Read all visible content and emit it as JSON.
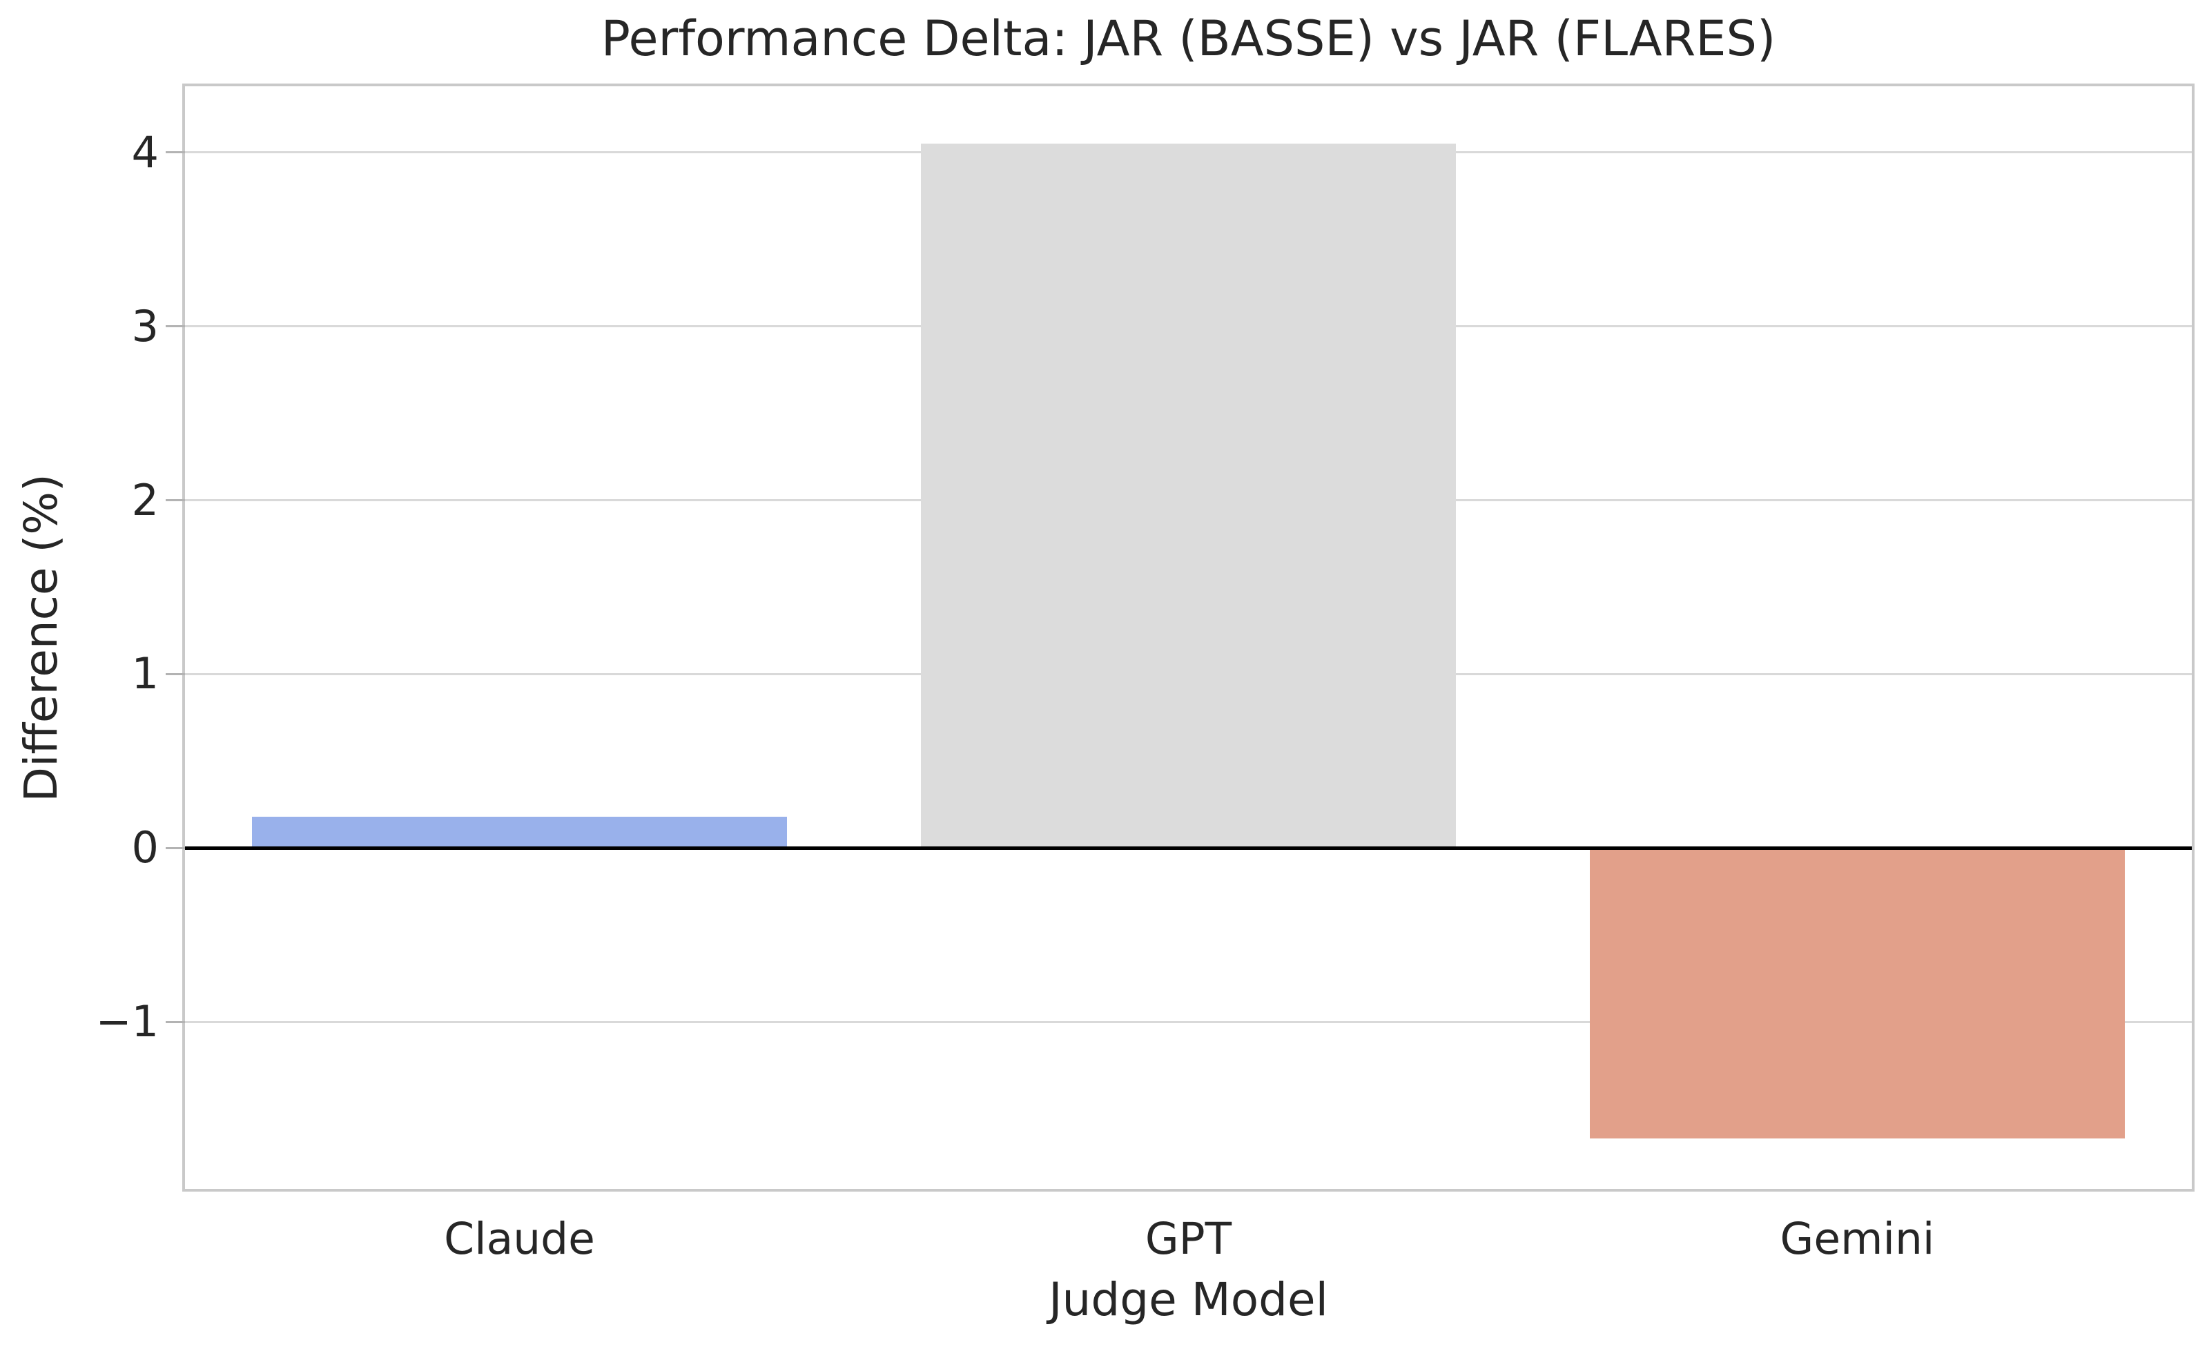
{
  "chart_data": {
    "type": "bar",
    "title": "Performance Delta: JAR (BASSE) vs JAR (FLARES)",
    "xlabel": "Judge Model",
    "ylabel": "Difference (%)",
    "categories": [
      "Claude",
      "GPT",
      "Gemini"
    ],
    "values": [
      0.18,
      4.05,
      -1.67
    ],
    "bar_colors": [
      "#99b1eb",
      "#dcdcdc",
      "#e2a08a"
    ],
    "bar_width_frac": 0.8,
    "ylim": [
      -1.96,
      4.38
    ],
    "yticks": [
      4,
      3,
      2,
      1,
      0,
      -1
    ],
    "ytick_labels": [
      "4",
      "3",
      "2",
      "1",
      "0",
      "−1"
    ],
    "grid": "horizontal gridlines on, vertical off",
    "legend": "none",
    "zero_line": true,
    "colors": {
      "background": "#ffffff",
      "grid": "#d9d9d9",
      "spine": "#c9c9c9",
      "tick": "#b3b3b3",
      "text": "#262626",
      "zero_line": "#000000"
    }
  }
}
